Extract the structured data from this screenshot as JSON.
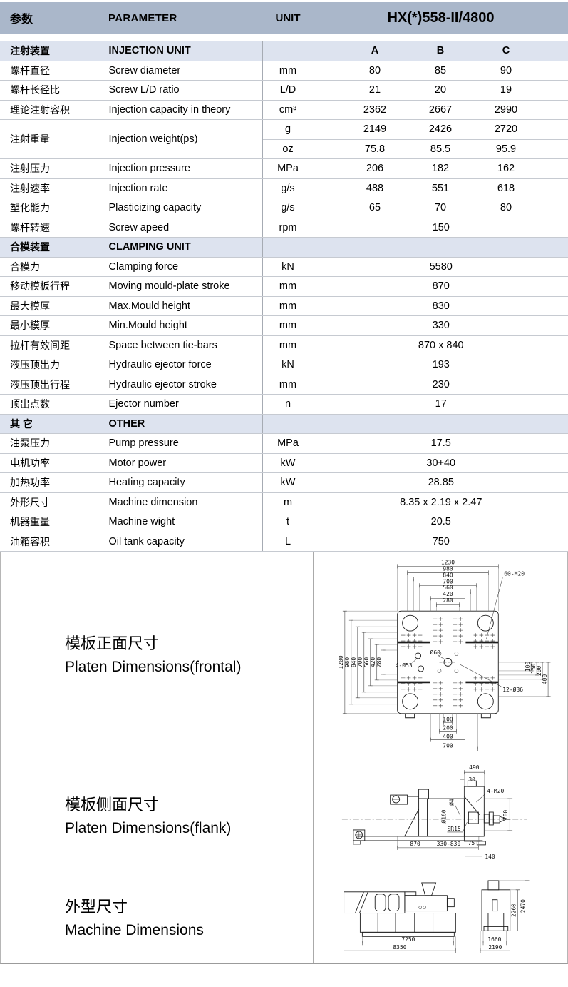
{
  "header": {
    "param_cn": "参数",
    "param_en": "PARAMETER",
    "unit": "UNIT",
    "model": "HX(*)558-II/4800"
  },
  "col_headers": {
    "a": "A",
    "b": "B",
    "c": "C"
  },
  "table": {
    "rows": [
      {
        "type": "section",
        "cn": "注射装置",
        "en": "INJECTION UNIT",
        "abc": true
      },
      {
        "type": "data",
        "cn": "螺杆直径",
        "en": "Screw diameter",
        "unit": "mm",
        "values": [
          "80",
          "85",
          "90"
        ]
      },
      {
        "type": "data",
        "cn": "螺杆长径比",
        "en": "Screw L/D ratio",
        "unit": "L/D",
        "values": [
          "21",
          "20",
          "19"
        ]
      },
      {
        "type": "data",
        "cn": "理论注射容积",
        "en": "Injection capacity in theory",
        "unit": "cm³",
        "values": [
          "2362",
          "2667",
          "2990"
        ]
      },
      {
        "type": "dual",
        "cn": "注射重量",
        "en": "Injection weight(ps)",
        "subs": [
          {
            "unit": "g",
            "values": [
              "2149",
              "2426",
              "2720"
            ]
          },
          {
            "unit": "oz",
            "values": [
              "75.8",
              "85.5",
              "95.9"
            ]
          }
        ]
      },
      {
        "type": "data",
        "cn": "注射压力",
        "en": "Injection pressure",
        "unit": "MPa",
        "values": [
          "206",
          "182",
          "162"
        ]
      },
      {
        "type": "data",
        "cn": "注射速率",
        "en": "Injection rate",
        "unit": "g/s",
        "values": [
          "488",
          "551",
          "618"
        ]
      },
      {
        "type": "data",
        "cn": "塑化能力",
        "en": "Plasticizing capacity",
        "unit": "g/s",
        "values": [
          "65",
          "70",
          "80"
        ]
      },
      {
        "type": "data",
        "cn": "螺杆转速",
        "en": "Screw apeed",
        "unit": "rpm",
        "values": [
          "150"
        ]
      },
      {
        "type": "section",
        "cn": "合模装置",
        "en": "CLAMPING UNIT"
      },
      {
        "type": "data",
        "cn": "合模力",
        "en": "Clamping force",
        "unit": "kN",
        "values": [
          "5580"
        ]
      },
      {
        "type": "data",
        "cn": "移动模板行程",
        "en": "Moving mould-plate stroke",
        "unit": "mm",
        "values": [
          "870"
        ]
      },
      {
        "type": "data",
        "cn": "最大模厚",
        "en": "Max.Mould height",
        "unit": "mm",
        "values": [
          "830"
        ]
      },
      {
        "type": "data",
        "cn": "最小模厚",
        "en": "Min.Mould height",
        "unit": "mm",
        "values": [
          "330"
        ]
      },
      {
        "type": "data",
        "cn": "拉杆有效间距",
        "en": "Space between tie-bars",
        "unit": "mm",
        "values": [
          "870 x 840"
        ]
      },
      {
        "type": "data",
        "cn": "液压顶出力",
        "en": "Hydraulic ejector force",
        "unit": "kN",
        "values": [
          "193"
        ]
      },
      {
        "type": "data",
        "cn": "液压顶出行程",
        "en": "Hydraulic ejector stroke",
        "unit": "mm",
        "values": [
          "230"
        ]
      },
      {
        "type": "data",
        "cn": "顶出点数",
        "en": "Ejector number",
        "unit": "n",
        "values": [
          "17"
        ]
      },
      {
        "type": "section",
        "cn": "其  它",
        "en": "OTHER"
      },
      {
        "type": "data",
        "cn": "油泵压力",
        "en": "Pump pressure",
        "unit": "MPa",
        "values": [
          "17.5"
        ]
      },
      {
        "type": "data",
        "cn": "电机功率",
        "en": "Motor power",
        "unit": "kW",
        "values": [
          "30+40"
        ]
      },
      {
        "type": "data",
        "cn": "加热功率",
        "en": "Heating capacity",
        "unit": "kW",
        "values": [
          "28.85"
        ]
      },
      {
        "type": "data",
        "cn": "外形尺寸",
        "en": "Machine dimension",
        "unit": "m",
        "values": [
          "8.35 x 2.19 x 2.47"
        ]
      },
      {
        "type": "data",
        "cn": "机器重量",
        "en": "Machine wight",
        "unit": "t",
        "values": [
          "20.5"
        ]
      },
      {
        "type": "data",
        "cn": "油箱容积",
        "en": "Oil tank capacity",
        "unit": "L",
        "values": [
          "750"
        ]
      }
    ]
  },
  "diagrams": {
    "frontal": {
      "label_cn": "模板正面尺寸",
      "label_en": "Platen Dimensions(frontal)",
      "top_dims": [
        "1230",
        "980",
        "840",
        "700",
        "560",
        "420",
        "280"
      ],
      "left_dims": [
        "1200",
        "980",
        "840",
        "700",
        "560",
        "420",
        "280"
      ],
      "right_dims": [
        "100",
        "150",
        "200",
        "400"
      ],
      "bottom_dims": [
        "100",
        "200",
        "400",
        "700"
      ],
      "annotations": {
        "tie_bolts": "60-M20",
        "center_hole": "Ø60",
        "locating_holes": "4-Ø53",
        "ejector_holes": "12-Ø36"
      }
    },
    "flank": {
      "label_cn": "模板侧面尺寸",
      "label_en": "Platen Dimensions(flank)",
      "dims": {
        "d490": "490",
        "d30": "30",
        "bolts": "4-M20",
        "d700": "700",
        "nozzle_hole": "Ø4",
        "ring": "Ø160",
        "radius": "SR15",
        "d870": "870",
        "d330_830": "330-830",
        "d75": "75",
        "d140": "140"
      }
    },
    "machine": {
      "label_cn": "外型尺寸",
      "label_en": "Machine Dimensions",
      "dims": {
        "d7250": "7250",
        "d8350": "8350",
        "d1660": "1660",
        "d2190": "2190",
        "d2260": "2260",
        "d2470": "2470"
      }
    }
  }
}
